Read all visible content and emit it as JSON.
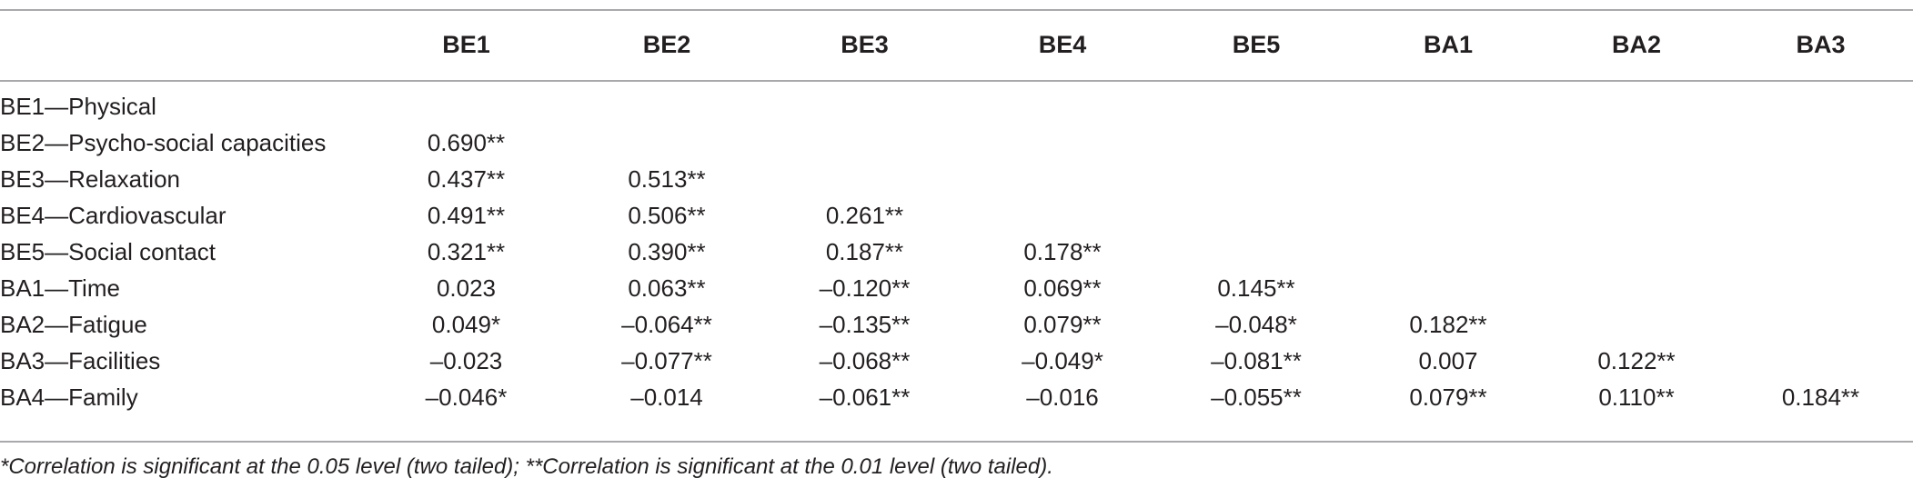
{
  "table": {
    "columns": [
      "",
      "BE1",
      "BE2",
      "BE3",
      "BE4",
      "BE5",
      "BA1",
      "BA2",
      "BA3"
    ],
    "rows": [
      {
        "label": "BE1—Physical",
        "cells": [
          "",
          "",
          "",
          "",
          "",
          "",
          "",
          ""
        ]
      },
      {
        "label": "BE2—Psycho-social capacities",
        "cells": [
          "0.690**",
          "",
          "",
          "",
          "",
          "",
          "",
          ""
        ]
      },
      {
        "label": "BE3—Relaxation",
        "cells": [
          "0.437**",
          "0.513**",
          "",
          "",
          "",
          "",
          "",
          ""
        ]
      },
      {
        "label": "BE4—Cardiovascular",
        "cells": [
          "0.491**",
          "0.506**",
          "0.261**",
          "",
          "",
          "",
          "",
          ""
        ]
      },
      {
        "label": "BE5—Social contact",
        "cells": [
          "0.321**",
          "0.390**",
          "0.187**",
          "0.178**",
          "",
          "",
          "",
          ""
        ]
      },
      {
        "label": "BA1—Time",
        "cells": [
          "0.023",
          "0.063**",
          "–0.120**",
          "0.069**",
          "0.145**",
          "",
          "",
          ""
        ]
      },
      {
        "label": "BA2—Fatigue",
        "cells": [
          "0.049*",
          "–0.064**",
          "–0.135**",
          "0.079**",
          "–0.048*",
          "0.182**",
          "",
          ""
        ]
      },
      {
        "label": "BA3—Facilities",
        "cells": [
          "–0.023",
          "–0.077**",
          "–0.068**",
          "–0.049*",
          "–0.081**",
          "0.007",
          "0.122**",
          ""
        ]
      },
      {
        "label": "BA4—Family",
        "cells": [
          "–0.046*",
          "–0.014",
          "–0.061**",
          "–0.016",
          "–0.055**",
          "0.079**",
          "0.110**",
          "0.184**"
        ]
      }
    ]
  },
  "footnote": "*Correlation is significant at the 0.05 level (two tailed);  **Correlation is significant at the 0.01 level (two tailed)."
}
